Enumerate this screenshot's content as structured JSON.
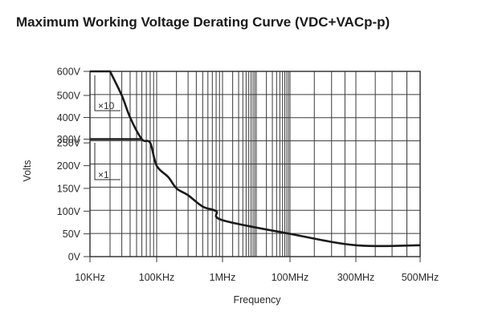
{
  "chart_data": {
    "type": "line",
    "title": "Maximum Working Voltage Derating Curve (VDC+VACp-p)",
    "xlabel": "Frequency",
    "ylabel": "Volts",
    "x_scale": "log",
    "x_tick_labels": [
      "10KHz",
      "100KHz",
      "1MHz",
      "100MHz",
      "300MHz",
      "500MHz"
    ],
    "y_tick_labels": [
      "0V",
      "50V",
      "100V",
      "150V",
      "200V",
      "250V",
      "300V",
      "400V",
      "500V",
      "600V"
    ],
    "grid": true,
    "series": [
      {
        "name": "×10",
        "x_labels": [
          "10KHz",
          "20KHz",
          "30KHz",
          "40KHz",
          "60KHz",
          "80KHz",
          "100KHz",
          "150KHz",
          "200KHz",
          "300KHz",
          "500KHz",
          "800KHz",
          "1MHz",
          "100MHz",
          "300MHz",
          "500MHz"
        ],
        "y_labels": [
          "600V",
          "600V",
          "500V",
          "400V",
          "300V",
          "250V",
          "200V",
          "175V",
          "150V",
          "135V",
          "110V",
          "100V",
          "80V",
          "50V",
          "25V",
          "25V"
        ]
      },
      {
        "name": "×1",
        "x_labels": [
          "10KHz",
          "60KHz"
        ],
        "y_labels": [
          "300V",
          "300V"
        ]
      }
    ]
  }
}
